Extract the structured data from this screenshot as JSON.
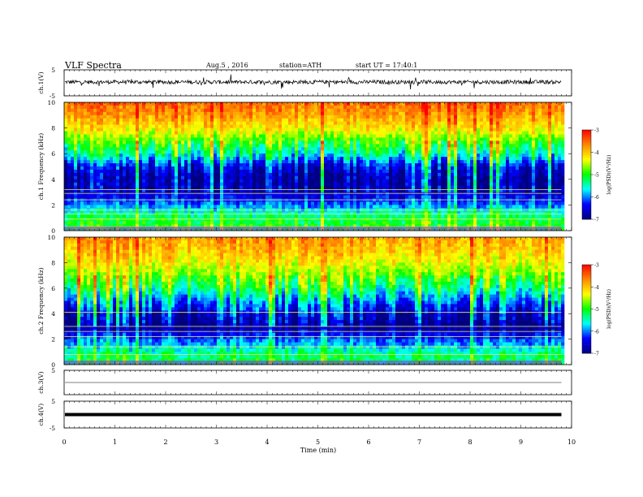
{
  "header": {
    "title": "VLF Spectra",
    "date": "Aug.5 , 2016",
    "station": "station=ATH",
    "start": "start UT = 17:40:1"
  },
  "colorscale": {
    "label": "log(PSD)(V²/Hz)",
    "ticks": [
      "-3",
      "-4",
      "-5",
      "-6",
      "-7"
    ],
    "stops": [
      "#ff0000",
      "#ff8800",
      "#ffff00",
      "#00ff00",
      "#00ffff",
      "#0000ff",
      "#000080"
    ]
  },
  "chart_data": [
    {
      "type": "line",
      "name": "ch1-waveform",
      "ylabel": "ch.1(V)",
      "ylim": [
        -5,
        5
      ],
      "yticks": [
        "5",
        "-5"
      ],
      "x_range": [
        0,
        9.8
      ],
      "description_values": {
        "baseline_V": 0.3,
        "noise_amplitude_V": 1.5
      }
    },
    {
      "type": "heatmap",
      "name": "ch1-spectrogram",
      "ylabel": "ch.1 Frequency (kHz)",
      "ylim": [
        0,
        10
      ],
      "yticks": [
        "0",
        "2",
        "4",
        "6",
        "8",
        "10"
      ],
      "x_range": [
        0,
        9.8
      ],
      "log_psd_by_frequency_kHz": [
        {
          "f": 0.5,
          "v": -5.0
        },
        {
          "f": 1.0,
          "v": -5.2
        },
        {
          "f": 1.5,
          "v": -5.6
        },
        {
          "f": 2.0,
          "v": -6.0
        },
        {
          "f": 3.0,
          "v": -6.6
        },
        {
          "f": 4.0,
          "v": -6.8
        },
        {
          "f": 5.0,
          "v": -6.4
        },
        {
          "f": 6.0,
          "v": -5.4
        },
        {
          "f": 7.0,
          "v": -4.8
        },
        {
          "f": 8.0,
          "v": -4.2
        },
        {
          "f": 9.0,
          "v": -3.8
        },
        {
          "f": 10.0,
          "v": -3.5
        }
      ],
      "lines_kHz": [
        0.3,
        0.9,
        1.3,
        1.6,
        2.4,
        2.9,
        3.2
      ]
    },
    {
      "type": "heatmap",
      "name": "ch2-spectrogram",
      "ylabel": "ch.2 Frequency (kHz)",
      "ylim": [
        0,
        10
      ],
      "yticks": [
        "0",
        "2",
        "4",
        "6",
        "8",
        "10"
      ],
      "x_range": [
        0,
        9.8
      ],
      "log_psd_by_frequency_kHz": [
        {
          "f": 0.5,
          "v": -5.2
        },
        {
          "f": 1.0,
          "v": -5.4
        },
        {
          "f": 1.5,
          "v": -5.8
        },
        {
          "f": 2.0,
          "v": -6.1
        },
        {
          "f": 3.0,
          "v": -6.9
        },
        {
          "f": 4.0,
          "v": -6.5
        },
        {
          "f": 5.0,
          "v": -5.9
        },
        {
          "f": 6.0,
          "v": -5.2
        },
        {
          "f": 7.0,
          "v": -4.7
        },
        {
          "f": 8.0,
          "v": -4.3
        },
        {
          "f": 9.0,
          "v": -4.0
        },
        {
          "f": 10.0,
          "v": -3.8
        }
      ],
      "lines_kHz": [
        0.8,
        1.4,
        2.2,
        2.6,
        3.0,
        4.1
      ]
    },
    {
      "type": "line",
      "name": "ch3-waveform",
      "ylabel": "ch.3(V)",
      "ylim": [
        -5,
        5
      ],
      "yticks": [
        "5"
      ],
      "x_range": [
        0,
        9.8
      ],
      "description_values": {
        "baseline_V": 0.0
      }
    },
    {
      "type": "line",
      "name": "ch4-waveform",
      "ylabel": "ch.4(V)",
      "ylim": [
        -5,
        5
      ],
      "yticks": [
        "5",
        "-5"
      ],
      "x_range": [
        0,
        9.8
      ],
      "description_values": {
        "baseline_V": 0.0
      }
    }
  ],
  "xaxis": {
    "label": "Time (min)",
    "range": [
      0,
      10
    ],
    "ticks": [
      "0",
      "1",
      "2",
      "3",
      "4",
      "5",
      "6",
      "7",
      "8",
      "9",
      "10"
    ]
  }
}
